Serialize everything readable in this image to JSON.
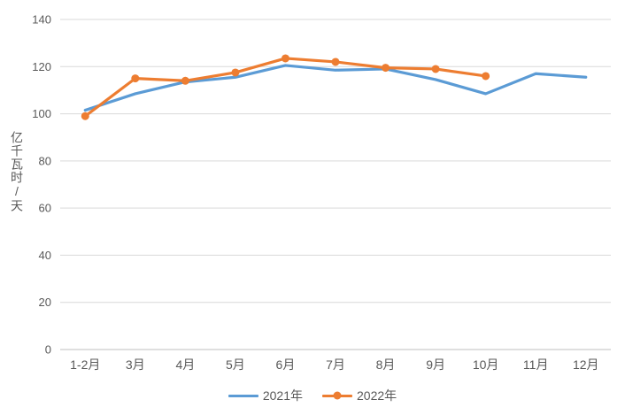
{
  "chart_data": {
    "type": "line",
    "categories": [
      "1-2月",
      "3月",
      "4月",
      "5月",
      "6月",
      "7月",
      "8月",
      "9月",
      "10月",
      "11月",
      "12月"
    ],
    "series": [
      {
        "name": "2021年",
        "color": "#5B9BD5",
        "marker": "none",
        "values": [
          101.5,
          108.5,
          113.5,
          115.5,
          120.5,
          118.5,
          119,
          114.5,
          108.5,
          117,
          115.5
        ]
      },
      {
        "name": "2022年",
        "color": "#ED7D31",
        "marker": "circle",
        "values": [
          99,
          115,
          114,
          117.5,
          123.5,
          122,
          119.5,
          119,
          116,
          null,
          null
        ]
      }
    ],
    "title": "",
    "xlabel": "",
    "ylabel": "亿千瓦时/天",
    "ylim": [
      0,
      140
    ],
    "ytick_step": 20,
    "grid": true,
    "legend_position": "bottom",
    "colors": {
      "grid_line": "#D9D9D9",
      "axis_line": "#BFBFBF",
      "tick_text": "#595959",
      "background": "#FFFFFF"
    }
  }
}
